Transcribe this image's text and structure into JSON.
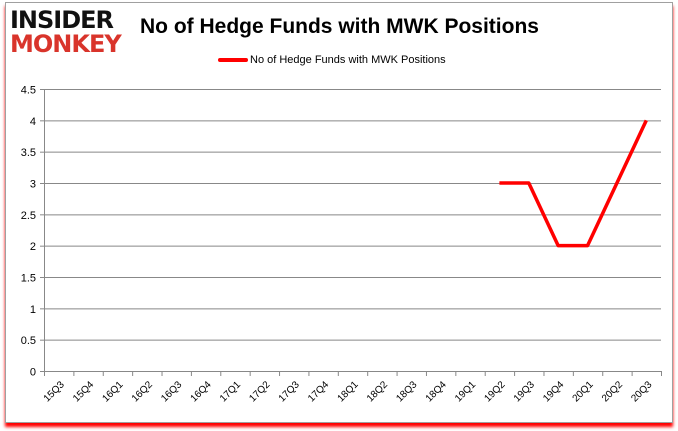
{
  "logo": {
    "line1": "INSIDER",
    "line2": "MONKEY"
  },
  "chart_data": {
    "type": "line",
    "title": "No of Hedge Funds with MWK Positions",
    "categories": [
      "15Q3",
      "15Q4",
      "16Q1",
      "16Q2",
      "16Q3",
      "16Q4",
      "17Q1",
      "17Q2",
      "17Q3",
      "17Q4",
      "18Q1",
      "18Q2",
      "18Q3",
      "18Q4",
      "19Q1",
      "19Q2",
      "19Q3",
      "19Q4",
      "20Q1",
      "20Q2",
      "20Q3"
    ],
    "series": [
      {
        "name": "No of Hedge Funds with MWK Positions",
        "color": "#ff0000",
        "values": [
          null,
          null,
          null,
          null,
          null,
          null,
          null,
          null,
          null,
          null,
          null,
          null,
          null,
          null,
          null,
          3,
          3,
          2,
          2,
          3,
          4
        ]
      }
    ],
    "ylim": [
      0,
      4.5
    ],
    "yticks": [
      "0",
      "0.5",
      "1",
      "1.5",
      "2",
      "2.5",
      "3",
      "3.5",
      "4",
      "4.5"
    ],
    "grid": true,
    "legend": "top"
  }
}
